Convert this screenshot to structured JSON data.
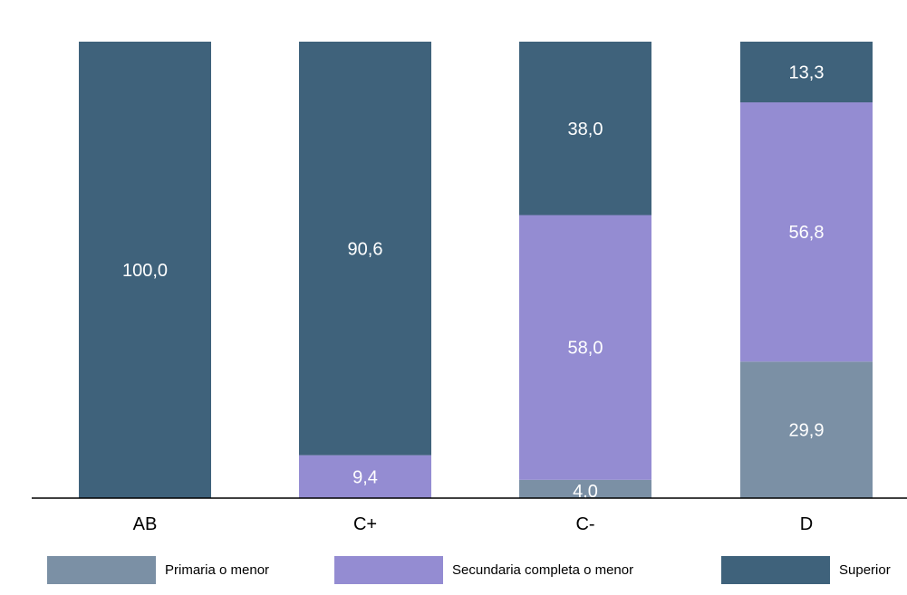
{
  "chart_data": {
    "type": "bar",
    "stacked": true,
    "percent": true,
    "categories": [
      "AB",
      "C+",
      "C-",
      "D"
    ],
    "series": [
      {
        "name": "Primaria o menor",
        "color": "#7b90a5",
        "values": [
          0,
          0,
          4.0,
          29.9
        ],
        "labels": [
          "",
          "",
          "4,0",
          "29,9"
        ]
      },
      {
        "name": "Secundaria completa o menor",
        "color": "#948cd2",
        "values": [
          0,
          9.4,
          58.0,
          56.8
        ],
        "labels": [
          "",
          "9,4",
          "58,0",
          "56,8"
        ]
      },
      {
        "name": "Superior",
        "color": "#3f627b",
        "values": [
          100.0,
          90.6,
          38.0,
          13.3
        ],
        "labels": [
          "100,0",
          "90,6",
          "38,0",
          "13,3"
        ]
      }
    ],
    "ylim": [
      0,
      100
    ],
    "grid": false,
    "legend_position": "bottom"
  }
}
